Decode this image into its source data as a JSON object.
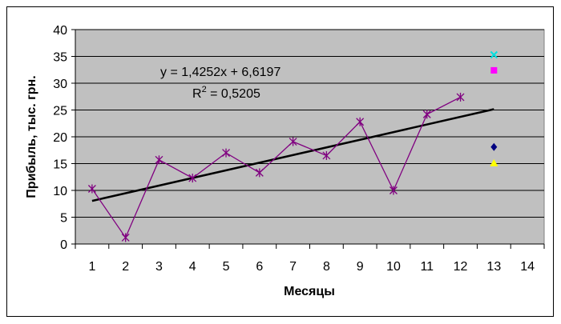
{
  "chart_data": {
    "type": "line",
    "title": "",
    "xlabel": "Месяцы",
    "ylabel": "Прибыль, тыс. грн.",
    "xlim": [
      0.5,
      14.5
    ],
    "ylim": [
      0,
      40
    ],
    "x_ticks": [
      1,
      2,
      3,
      4,
      5,
      6,
      7,
      8,
      9,
      10,
      11,
      12,
      13,
      14
    ],
    "y_ticks": [
      0,
      5,
      10,
      15,
      20,
      25,
      30,
      35,
      40
    ],
    "grid": "horizontal",
    "plot_background": "#c0c0c0",
    "series": [
      {
        "color": "#800080",
        "marker": "asterisk",
        "x": [
          1,
          2,
          3,
          4,
          5,
          6,
          7,
          8,
          9,
          10,
          11,
          12
        ],
        "y": [
          10.3,
          1.2,
          15.7,
          12.3,
          17.0,
          13.3,
          19.1,
          16.5,
          22.8,
          10.0,
          24.2,
          27.4
        ]
      }
    ],
    "trendline": {
      "equation": "y = 1,4252x + 6,6197",
      "r2_prefix": "R",
      "r2_sup": "2",
      "r2_value": " = 0,5205",
      "slope": 1.4252,
      "intercept": 6.6197,
      "x_range": [
        1,
        13
      ],
      "color": "#000000"
    },
    "forecast_points": [
      {
        "x": 13,
        "y": 35.3,
        "marker": "x",
        "color": "#00e0e0"
      },
      {
        "x": 13,
        "y": 32.4,
        "marker": "square",
        "color": "#ff00ff"
      },
      {
        "x": 13,
        "y": 18.1,
        "marker": "diamond",
        "color": "#000080"
      },
      {
        "x": 13,
        "y": 15.1,
        "marker": "triangle",
        "color": "#ffff00"
      }
    ]
  }
}
